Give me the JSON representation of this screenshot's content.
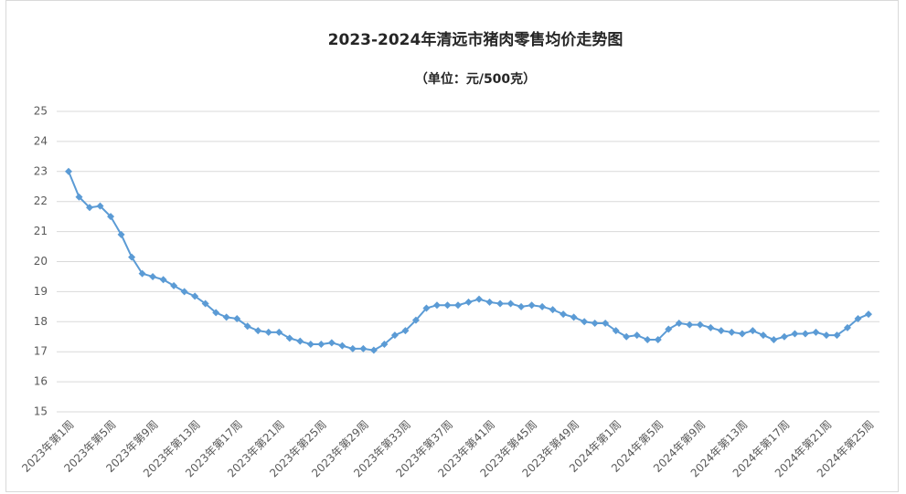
{
  "chart_data": {
    "type": "line",
    "title": "2023-2024年清远市猪肉零售均价走势图",
    "subtitle": "（单位：元/500克）",
    "categories": [
      "2023年第1周",
      null,
      null,
      null,
      "2023年第5周",
      null,
      null,
      null,
      "2023年第9周",
      null,
      null,
      null,
      "2023年第13周",
      null,
      null,
      null,
      "2023年第17周",
      null,
      null,
      null,
      "2023年第21周",
      null,
      null,
      null,
      "2023年第25周",
      null,
      null,
      null,
      "2023年第29周",
      null,
      null,
      null,
      "2023年第33周",
      null,
      null,
      null,
      "2023年第37周",
      null,
      null,
      null,
      "2023年第41周",
      null,
      null,
      null,
      "2023年第45周",
      null,
      null,
      null,
      "2023年第49周",
      null,
      null,
      null,
      "2024年第1周",
      null,
      null,
      null,
      "2024年第5周",
      null,
      null,
      null,
      "2024年第9周",
      null,
      null,
      null,
      "2024年第13周",
      null,
      null,
      null,
      "2024年第17周",
      null,
      null,
      null,
      "2024年第21周",
      null,
      null,
      null,
      "2024年第25周"
    ],
    "series": [
      {
        "color": "#5b9bd5",
        "values": [
          23.0,
          22.15,
          21.8,
          21.85,
          21.5,
          20.9,
          20.15,
          19.6,
          19.5,
          19.4,
          19.2,
          19.0,
          18.85,
          18.6,
          18.3,
          18.15,
          18.1,
          17.85,
          17.7,
          17.65,
          17.65,
          17.45,
          17.35,
          17.25,
          17.25,
          17.3,
          17.2,
          17.1,
          17.1,
          17.05,
          17.25,
          17.55,
          17.7,
          18.05,
          18.45,
          18.55,
          18.55,
          18.55,
          18.65,
          18.75,
          18.65,
          18.6,
          18.6,
          18.5,
          18.55,
          18.5,
          18.4,
          18.25,
          18.15,
          18.0,
          17.95,
          17.95,
          17.7,
          17.5,
          17.55,
          17.4,
          17.4,
          17.75,
          17.95,
          17.9,
          17.9,
          17.8,
          17.7,
          17.65,
          17.6,
          17.7,
          17.55,
          17.4,
          17.5,
          17.6,
          17.6,
          17.65,
          17.55,
          17.55,
          17.8,
          18.1,
          18.25
        ]
      }
    ],
    "ylim": [
      15,
      25
    ],
    "yticks": [
      15,
      16,
      17,
      18,
      19,
      20,
      21,
      22,
      23,
      24,
      25
    ],
    "grid": true
  }
}
